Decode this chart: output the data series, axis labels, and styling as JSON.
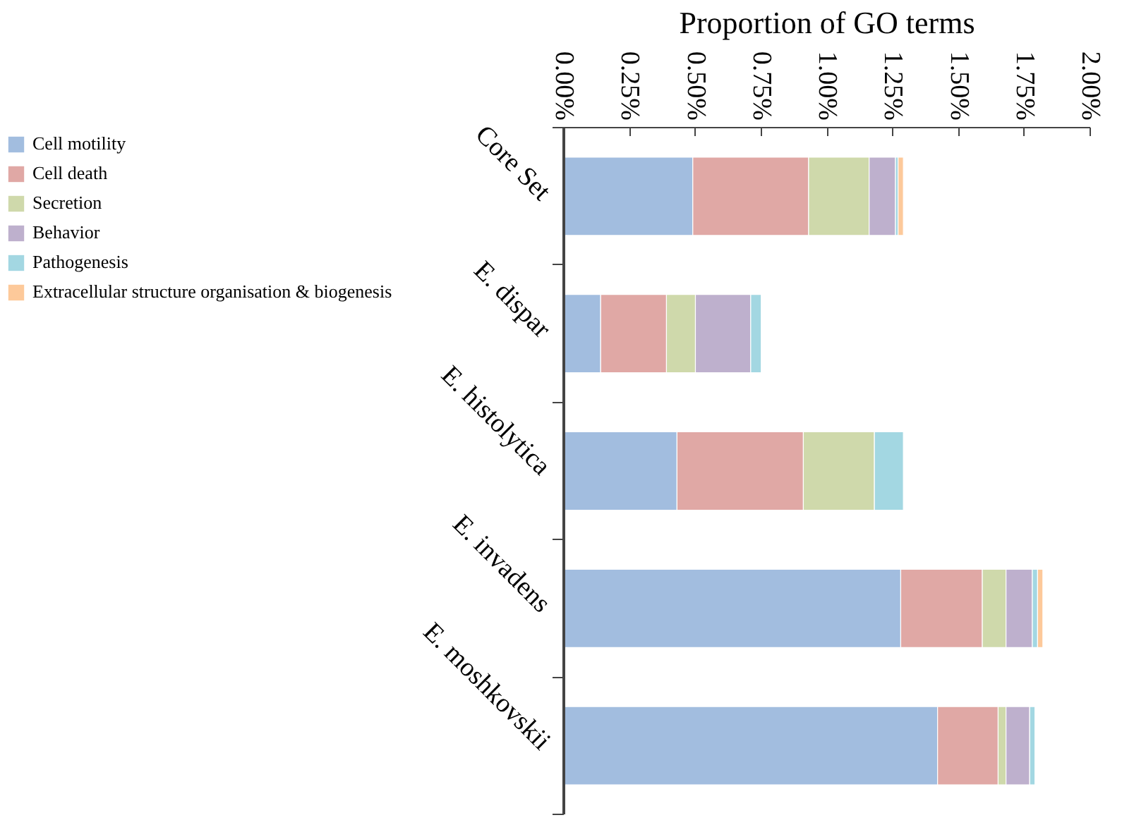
{
  "chart_data": {
    "type": "bar",
    "orientation": "horizontal",
    "stacked": true,
    "xlabel": "Proportion of GO terms",
    "categories": [
      "Core Set",
      "E. dispar",
      "E. histolytica",
      "E. invadens",
      "E. moshkovskii"
    ],
    "series": [
      {
        "name": "Cell motility",
        "color": "#a2bddf",
        "values": [
          0.49,
          0.14,
          0.43,
          1.28,
          1.42
        ]
      },
      {
        "name": "Cell death",
        "color": "#e0a8a5",
        "values": [
          0.44,
          0.25,
          0.48,
          0.31,
          0.23
        ]
      },
      {
        "name": "Secretion",
        "color": "#cfd9ab",
        "values": [
          0.23,
          0.11,
          0.27,
          0.09,
          0.03
        ]
      },
      {
        "name": "Behavior",
        "color": "#beb0cd",
        "values": [
          0.1,
          0.21,
          null,
          0.1,
          0.09
        ]
      },
      {
        "name": "Pathogenesis",
        "color": "#a3d7e2",
        "values": [
          0.01,
          0.04,
          0.11,
          0.02,
          0.02
        ]
      },
      {
        "name": "Extracellular structure organisation & biogenesis",
        "color": "#fdc99a",
        "values": [
          0.02,
          null,
          null,
          0.02,
          null
        ]
      }
    ],
    "xlim": [
      0,
      2
    ],
    "xticks": [
      {
        "value": 0,
        "label": "0.00%"
      },
      {
        "value": 0.25,
        "label": "0.25%"
      },
      {
        "value": 0.5,
        "label": "0.50%"
      },
      {
        "value": 0.75,
        "label": "0.75%"
      },
      {
        "value": 1,
        "label": "1.00%"
      },
      {
        "value": 1.25,
        "label": "1.25%"
      },
      {
        "value": 1.5,
        "label": "1.50%"
      },
      {
        "value": 1.75,
        "label": "1.75%"
      },
      {
        "value": 2,
        "label": "2.00%"
      }
    ],
    "grid": false,
    "legend": "left"
  }
}
